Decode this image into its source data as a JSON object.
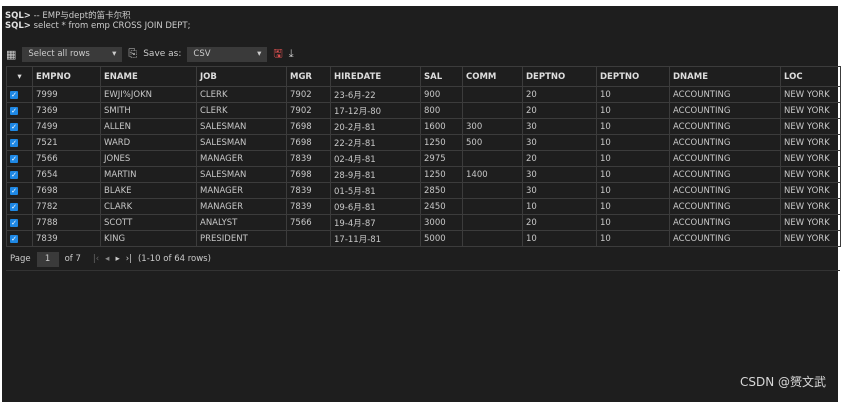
{
  "console": {
    "prompt": "SQL>",
    "line1": "-- EMP与dept的笛卡尔积",
    "line2": "select * from emp CROSS JOIN DEPT;"
  },
  "toolbar": {
    "select_label": "Select all rows",
    "save_as_label": "Save as:",
    "format": "CSV"
  },
  "columns": [
    "EMPNO",
    "ENAME",
    "JOB",
    "MGR",
    "HIREDATE",
    "SAL",
    "COMM",
    "DEPTNO",
    "DEPTNO",
    "DNAME",
    "LOC"
  ],
  "rows": [
    [
      "7999",
      "EWJI%JOKN",
      "CLERK",
      "7902",
      "23-6月-22",
      "900",
      "",
      "20",
      "10",
      "ACCOUNTING",
      "NEW YORK"
    ],
    [
      "7369",
      "SMITH",
      "CLERK",
      "7902",
      "17-12月-80",
      "800",
      "",
      "20",
      "10",
      "ACCOUNTING",
      "NEW YORK"
    ],
    [
      "7499",
      "ALLEN",
      "SALESMAN",
      "7698",
      "20-2月-81",
      "1600",
      "300",
      "30",
      "10",
      "ACCOUNTING",
      "NEW YORK"
    ],
    [
      "7521",
      "WARD",
      "SALESMAN",
      "7698",
      "22-2月-81",
      "1250",
      "500",
      "30",
      "10",
      "ACCOUNTING",
      "NEW YORK"
    ],
    [
      "7566",
      "JONES",
      "MANAGER",
      "7839",
      "02-4月-81",
      "2975",
      "",
      "20",
      "10",
      "ACCOUNTING",
      "NEW YORK"
    ],
    [
      "7654",
      "MARTIN",
      "SALESMAN",
      "7698",
      "28-9月-81",
      "1250",
      "1400",
      "30",
      "10",
      "ACCOUNTING",
      "NEW YORK"
    ],
    [
      "7698",
      "BLAKE",
      "MANAGER",
      "7839",
      "01-5月-81",
      "2850",
      "",
      "30",
      "10",
      "ACCOUNTING",
      "NEW YORK"
    ],
    [
      "7782",
      "CLARK",
      "MANAGER",
      "7839",
      "09-6月-81",
      "2450",
      "",
      "10",
      "10",
      "ACCOUNTING",
      "NEW YORK"
    ],
    [
      "7788",
      "SCOTT",
      "ANALYST",
      "7566",
      "19-4月-87",
      "3000",
      "",
      "20",
      "10",
      "ACCOUNTING",
      "NEW YORK"
    ],
    [
      "7839",
      "KING",
      "PRESIDENT",
      "",
      "17-11月-81",
      "5000",
      "",
      "10",
      "10",
      "ACCOUNTING",
      "NEW YORK"
    ]
  ],
  "pager": {
    "page_label": "Page",
    "page": "1",
    "of_label": "of 7",
    "rows_info": "(1-10 of 64 rows)"
  },
  "watermark": "CSDN @赟文武"
}
